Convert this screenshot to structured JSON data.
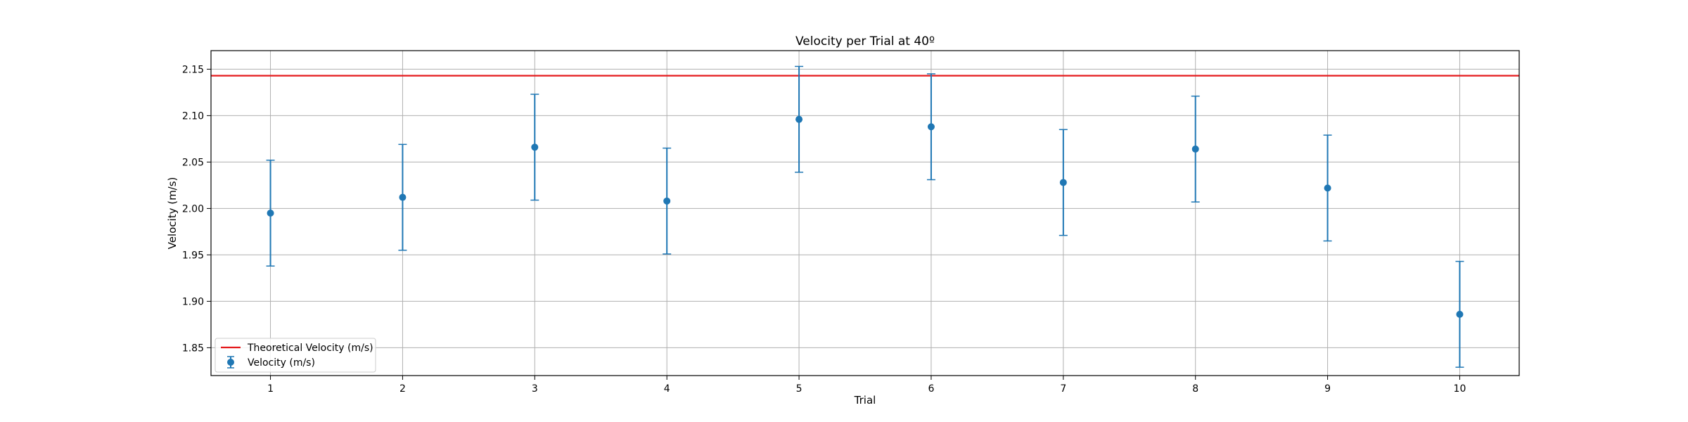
{
  "chart_data": {
    "type": "errorbar",
    "title": "Velocity per Trial at 40º",
    "xlabel": "Trial",
    "ylabel": "Velocity (m/s)",
    "x": [
      1,
      2,
      3,
      4,
      5,
      6,
      7,
      8,
      9,
      10
    ],
    "x_tick_labels": [
      "1",
      "2",
      "3",
      "4",
      "5",
      "6",
      "7",
      "8",
      "9",
      "10"
    ],
    "xlim": [
      0.55,
      10.45
    ],
    "ylim": [
      1.82,
      2.17
    ],
    "y_ticks": [
      1.85,
      1.9,
      1.95,
      2.0,
      2.05,
      2.1,
      2.15
    ],
    "y_tick_labels": [
      "1.85",
      "1.90",
      "1.95",
      "2.00",
      "2.05",
      "2.10",
      "2.15"
    ],
    "grid": true,
    "series": [
      {
        "name": "Velocity (m/s)",
        "values": [
          1.995,
          2.012,
          2.066,
          2.008,
          2.096,
          2.088,
          2.028,
          2.064,
          2.022,
          1.886
        ],
        "error": 0.057,
        "color": "#1f77b4"
      }
    ],
    "reference_line": {
      "name": "Theoretical Velocity (m/s)",
      "value": 2.143,
      "color": "#e41a1c"
    },
    "legend": {
      "position": "lower-left",
      "entries": [
        "Theoretical Velocity (m/s)",
        "Velocity (m/s)"
      ]
    }
  }
}
